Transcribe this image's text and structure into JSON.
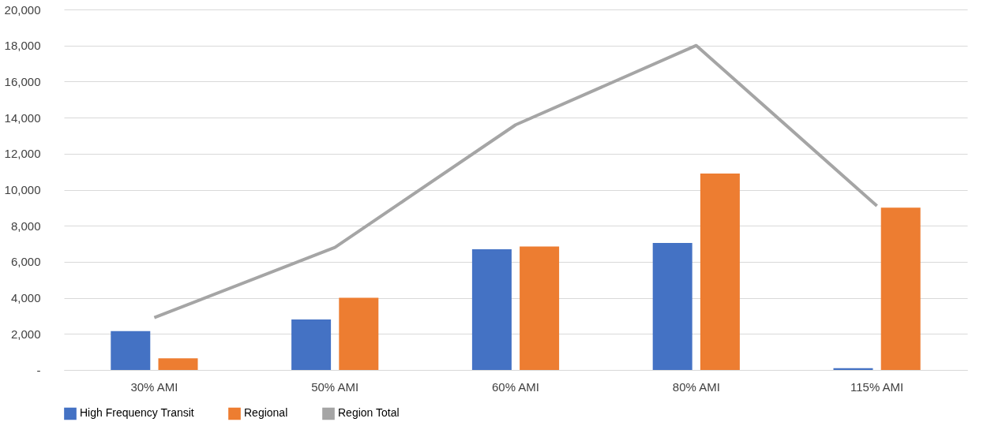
{
  "chart_data": {
    "type": "bar",
    "categories": [
      "30% AMI",
      "50% AMI",
      "60% AMI",
      "80% AMI",
      "115% AMI"
    ],
    "series": [
      {
        "name": "High Frequency Transit",
        "color": "#4472c4",
        "values": [
          2150,
          2800,
          6700,
          7050,
          100
        ]
      },
      {
        "name": "Regional",
        "color": "#ed7d31",
        "values": [
          650,
          4000,
          6850,
          10900,
          9000
        ]
      },
      {
        "name": "Region Total",
        "color": "#a5a5a5",
        "type": "line",
        "values": [
          2900,
          6800,
          13600,
          18000,
          9100
        ]
      }
    ],
    "ylim": [
      0,
      20000
    ],
    "yticks": [
      {
        "value": 0,
        "label": "-"
      },
      {
        "value": 2000,
        "label": "2,000"
      },
      {
        "value": 4000,
        "label": "4,000"
      },
      {
        "value": 6000,
        "label": "6,000"
      },
      {
        "value": 8000,
        "label": "8,000"
      },
      {
        "value": 10000,
        "label": "10,000"
      },
      {
        "value": 12000,
        "label": "12,000"
      },
      {
        "value": 14000,
        "label": "14,000"
      },
      {
        "value": 16000,
        "label": "16,000"
      },
      {
        "value": 18000,
        "label": "18,000"
      },
      {
        "value": 20000,
        "label": "20,000"
      }
    ],
    "grid": "y",
    "legend": "bottom"
  }
}
